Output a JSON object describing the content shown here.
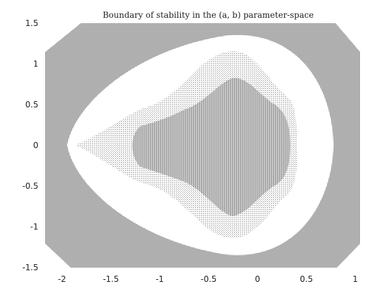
{
  "chart_data": {
    "type": "heatmap",
    "title": "Boundary of stability in the (a, b) parameter-space",
    "xlabel": "",
    "ylabel": "",
    "xlim": [
      -2.2,
      1.05
    ],
    "ylim": [
      -1.5,
      1.5
    ],
    "x_ticks": [
      "-2",
      "-1.5",
      "-1",
      "-0.5",
      "0",
      "0.5",
      "1"
    ],
    "y_ticks": [
      "1.5",
      "1",
      "0.5",
      "0",
      "-0.5",
      "-1",
      "-1.5"
    ],
    "grid": false,
    "colors": {
      "dense_hatch": "#8e8e8e",
      "interior_fill": "#b4b4b4",
      "band": "#ffffff",
      "axis_text": "#222222"
    },
    "regions": [
      {
        "name": "outer-clipped-region",
        "x_range": [
          -2.0,
          0.8
        ],
        "y_range": [
          -1.5,
          1.5
        ]
      },
      {
        "name": "white-band",
        "x_range": [
          -2.05,
          0.95
        ],
        "y_range": [
          -1.4,
          1.4
        ]
      },
      {
        "name": "boundary-set",
        "x_range": [
          -1.95,
          0.5
        ],
        "y_range": [
          -1.2,
          1.2
        ]
      },
      {
        "name": "stable-core",
        "x_range": [
          -1.35,
          0.48
        ],
        "y_range": [
          -1.12,
          1.12
        ]
      }
    ]
  }
}
